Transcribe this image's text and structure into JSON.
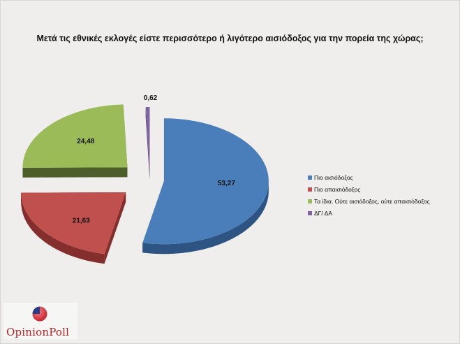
{
  "title": "Μετά τις εθνικές εκλογές είστε περισσότερο ή λιγότερο αισιόδοξος για την πορεία της χώρας;",
  "chart_data": {
    "type": "pie",
    "title": "Μετά τις εθνικές εκλογές είστε περισσότερο ή λιγότερο αισιόδοξος για την πορεία της χώρας;",
    "style": "3d-exploded",
    "legend_position": "right",
    "categories": [
      "Πιο αισιόδοξος",
      "Πιο απαισιόδοξος",
      "Τα ίδια. Ούτε αισιόδοξος, ούτε απαισιόδοξος",
      "ΔΓ/ ΔΑ"
    ],
    "values": [
      53.27,
      21.63,
      24.48,
      0.62
    ],
    "data_labels": [
      "53,27",
      "21,63",
      "24,48",
      "0,62"
    ],
    "colors": [
      "#4a7ebb",
      "#c0504d",
      "#9bbb59",
      "#8064a2"
    ],
    "side_colors": [
      "#2e5483",
      "#842f2d",
      "#4d5e2b",
      "#56436f"
    ]
  },
  "logo": {
    "text": "OpinionPoll"
  }
}
